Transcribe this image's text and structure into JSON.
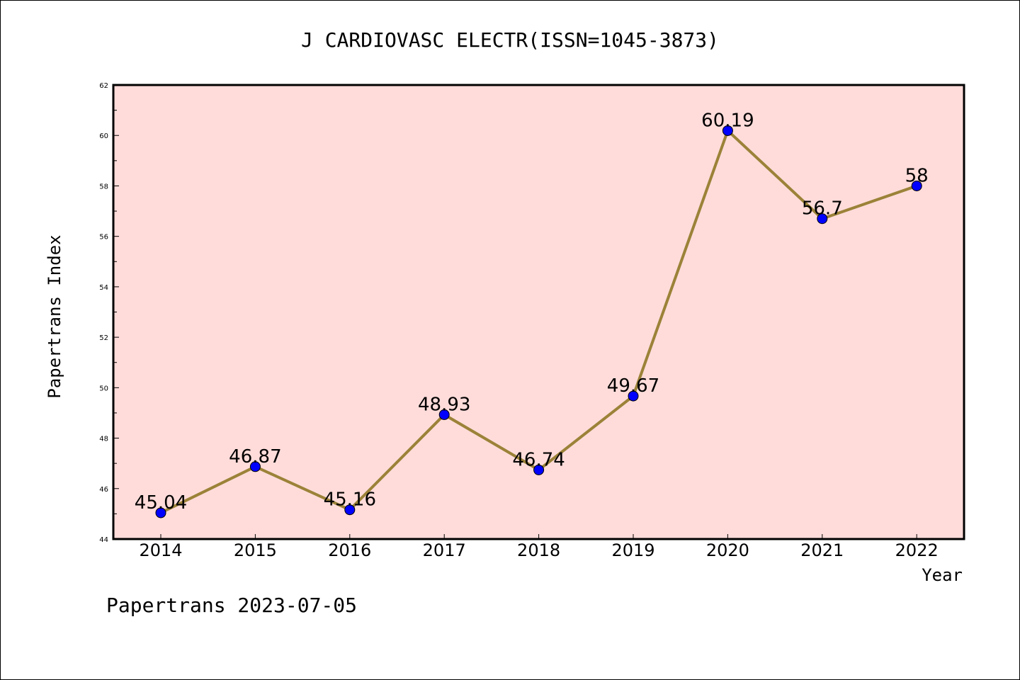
{
  "chart_data": {
    "type": "line",
    "title": "J CARDIOVASC ELECTR(ISSN=1045-3873)",
    "xlabel": "Year",
    "ylabel": "Papertrans Index",
    "footer": "Papertrans 2023-07-05",
    "categories": [
      "2014",
      "2015",
      "2016",
      "2017",
      "2018",
      "2019",
      "2020",
      "2021",
      "2022"
    ],
    "series": [
      {
        "values": [
          45.04,
          46.87,
          45.16,
          48.93,
          46.74,
          49.67,
          60.19,
          56.7,
          58
        ],
        "labels": [
          "45.04",
          "46.87",
          "45.16",
          "48.93",
          "46.74",
          "49.67",
          "60.19",
          "56.7",
          "58"
        ]
      }
    ],
    "ylim": [
      44,
      62
    ],
    "yticks": [
      "44",
      "46",
      "48",
      "50",
      "52",
      "54",
      "56",
      "58",
      "60",
      "62"
    ],
    "grid": false,
    "colors": {
      "plot_background": "#FFDCDA",
      "line": "#9B8238",
      "marker": "#0000FF"
    }
  }
}
